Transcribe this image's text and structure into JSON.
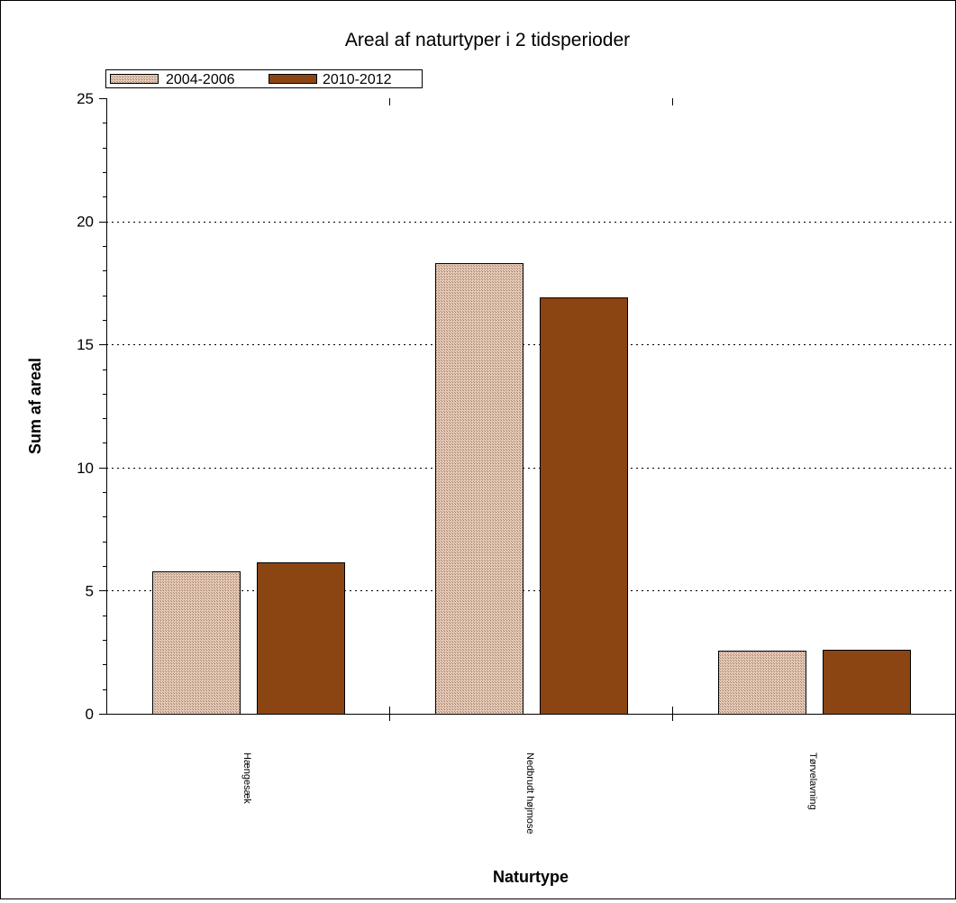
{
  "chart_data": {
    "type": "bar",
    "title": "Areal af naturtyper i 2 tidsperioder",
    "xlabel": "Naturtype",
    "ylabel": "Sum af areal",
    "categories": [
      "Hængesæk",
      "Nedbrudt højmose",
      "Tørvelavning"
    ],
    "series": [
      {
        "name": "2004-2006",
        "values": [
          5.8,
          18.3,
          2.55
        ],
        "color": "#d9b8a4",
        "pattern": "crosshatch"
      },
      {
        "name": "2010-2012",
        "values": [
          6.15,
          16.9,
          2.6
        ],
        "color": "#8b4513",
        "pattern": "solid"
      }
    ],
    "ylim": [
      0,
      25
    ],
    "yticks": [
      0,
      5,
      10,
      15,
      20,
      25
    ],
    "ytick_labels": [
      "0",
      "5",
      "10",
      "15",
      "20",
      "25"
    ],
    "grid": true,
    "legend": "top-left"
  }
}
